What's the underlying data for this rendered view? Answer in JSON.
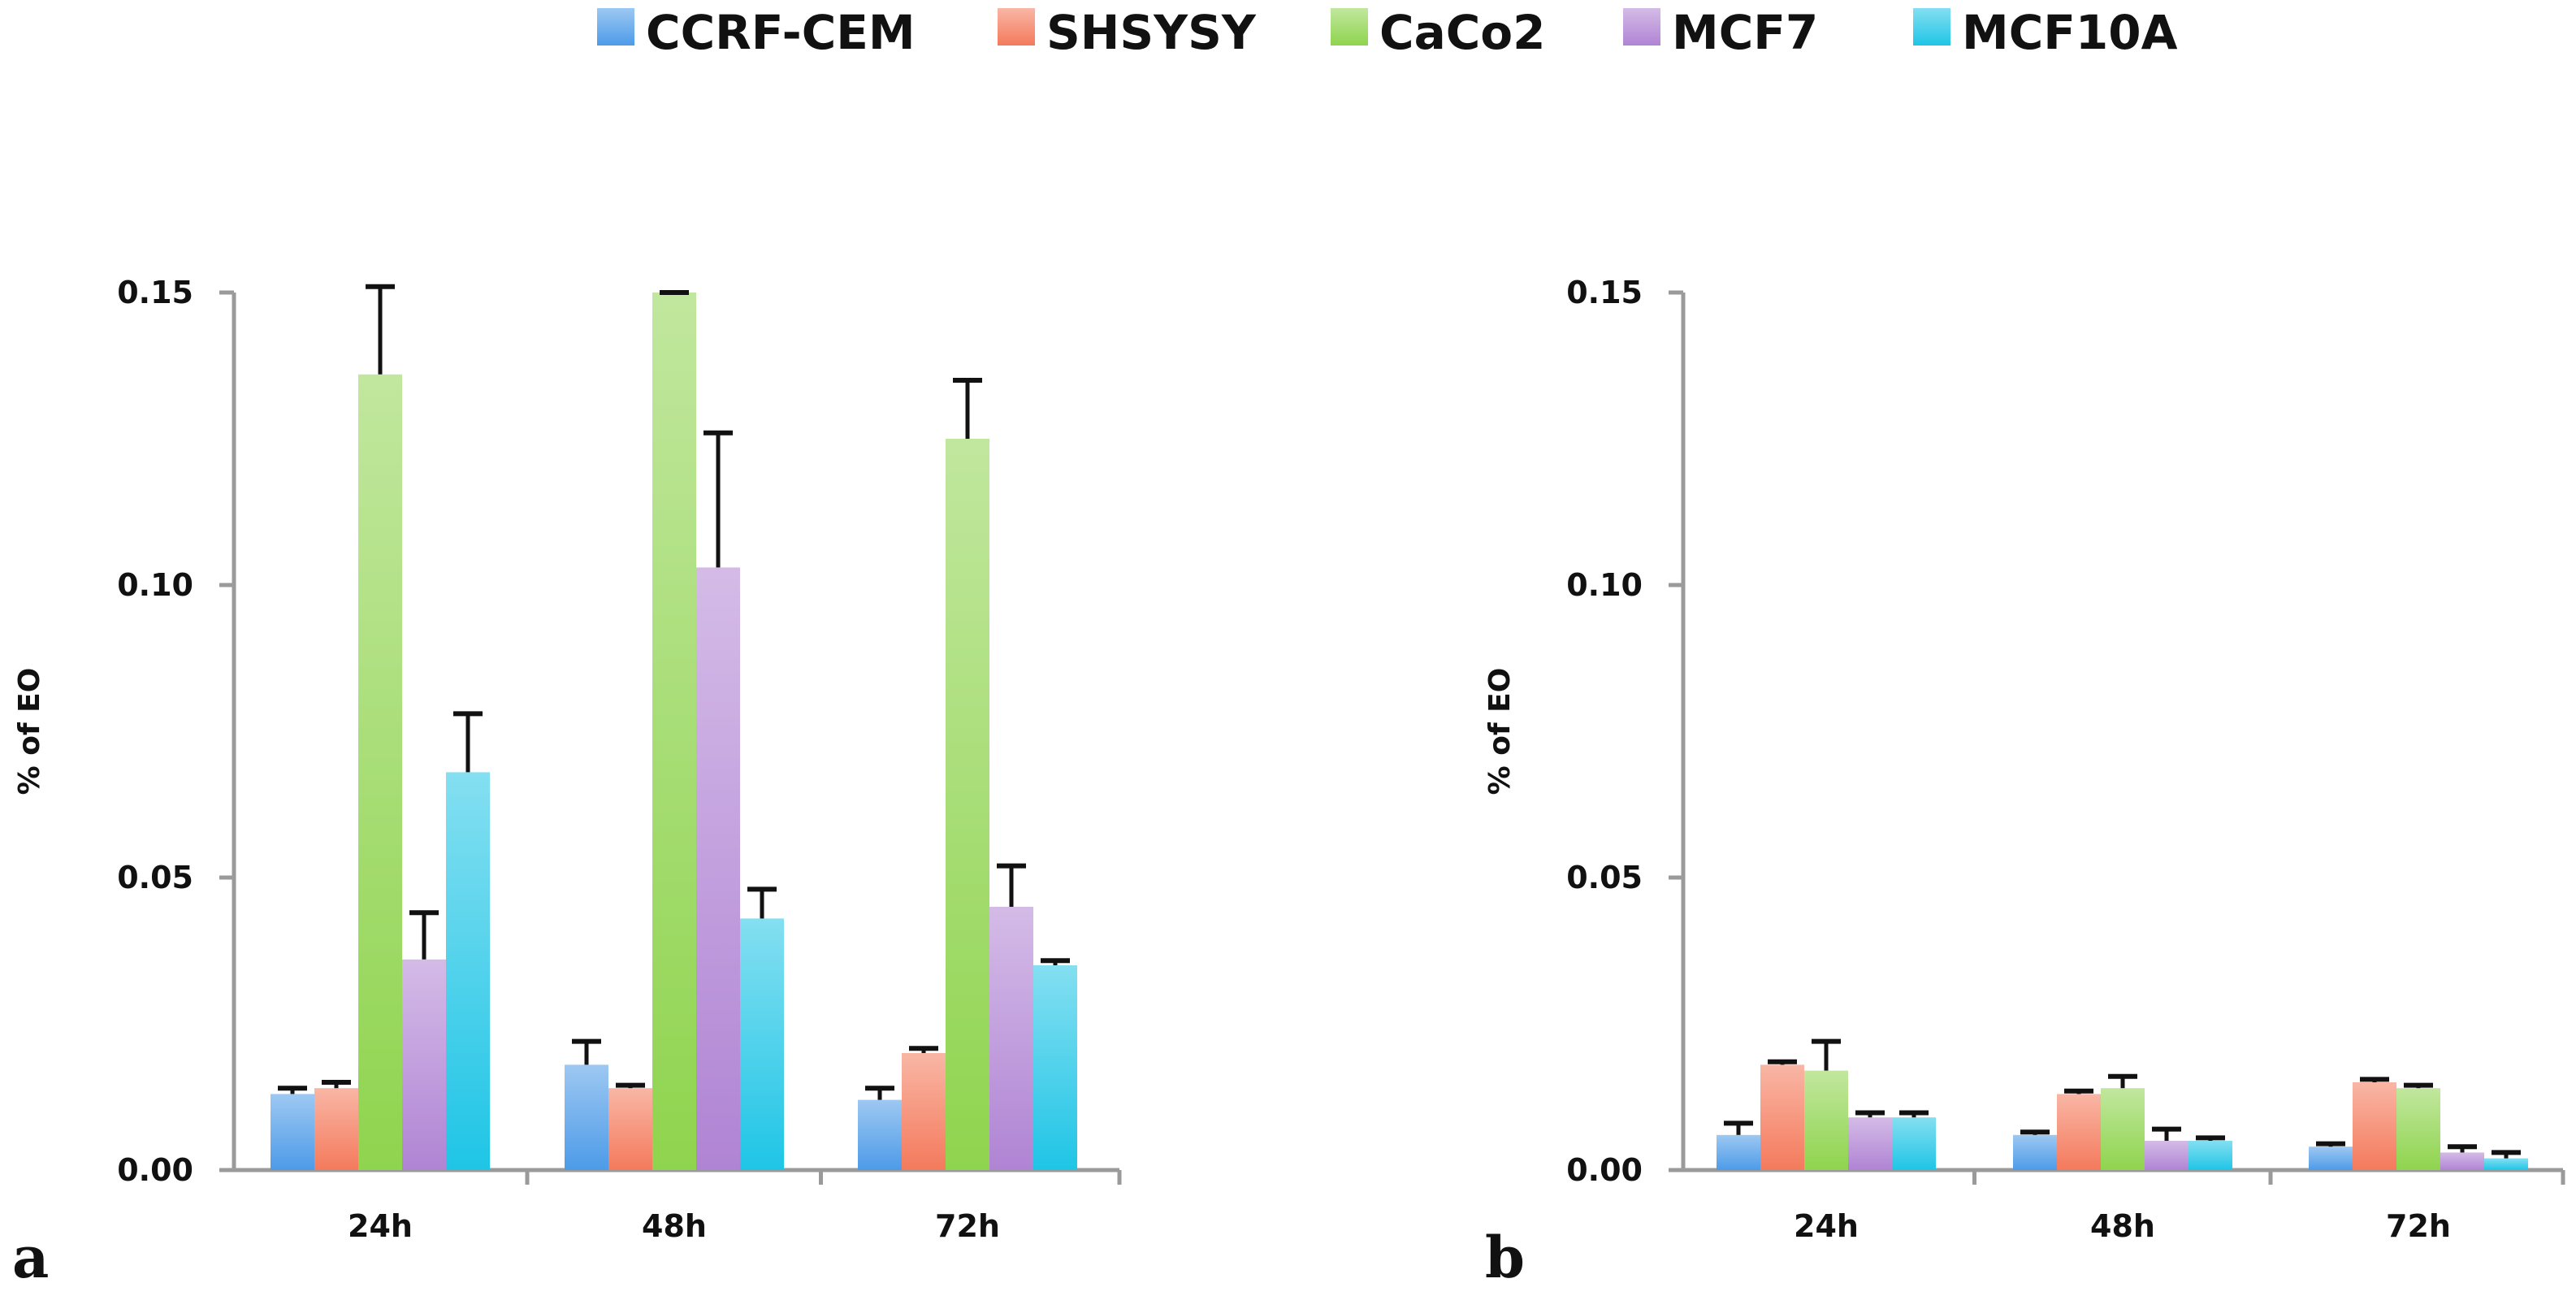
{
  "legend": [
    {
      "name": "CCRF-CEM",
      "color": "#4d9be8"
    },
    {
      "name": "SHSYSY",
      "color": "#f47a5c"
    },
    {
      "name": "CaCo2",
      "color": "#8fd44e"
    },
    {
      "name": "MCF7",
      "color": "#b084d4"
    },
    {
      "name": "MCF10A",
      "color": "#1fc5e6"
    }
  ],
  "chart_data": [
    {
      "type": "bar",
      "panel": "a",
      "title": "",
      "xlabel": "",
      "ylabel": "% of EO",
      "ylim": [
        0,
        0.15
      ],
      "yticks": [
        "0.00",
        "0.05",
        "0.10",
        "0.15"
      ],
      "categories": [
        "24h",
        "48h",
        "72h"
      ],
      "series": [
        {
          "name": "CCRF-CEM",
          "values": [
            0.013,
            0.018,
            0.012
          ],
          "errors": [
            0.001,
            0.004,
            0.002
          ]
        },
        {
          "name": "SHSYSY",
          "values": [
            0.014,
            0.014,
            0.02
          ],
          "errors": [
            0.001,
            0.0005,
            0.0008
          ]
        },
        {
          "name": "CaCo2",
          "values": [
            0.136,
            0.15,
            0.125
          ],
          "errors": [
            0.015,
            0.0,
            0.01
          ]
        },
        {
          "name": "MCF7",
          "values": [
            0.036,
            0.103,
            0.045
          ],
          "errors": [
            0.008,
            0.023,
            0.007
          ]
        },
        {
          "name": "MCF10A",
          "values": [
            0.068,
            0.043,
            0.035
          ],
          "errors": [
            0.01,
            0.005,
            0.0008
          ]
        }
      ]
    },
    {
      "type": "bar",
      "panel": "b",
      "title": "",
      "xlabel": "",
      "ylabel": "% of EO",
      "ylim": [
        0,
        0.15
      ],
      "yticks": [
        "0.00",
        "0.05",
        "0.10",
        "0.15"
      ],
      "categories": [
        "24h",
        "48h",
        "72h"
      ],
      "series": [
        {
          "name": "CCRF-CEM",
          "values": [
            0.006,
            0.006,
            0.004
          ],
          "errors": [
            0.002,
            0.0005,
            0.0005
          ]
        },
        {
          "name": "SHSYSY",
          "values": [
            0.018,
            0.013,
            0.015
          ],
          "errors": [
            0.0005,
            0.0005,
            0.0005
          ]
        },
        {
          "name": "CaCo2",
          "values": [
            0.017,
            0.014,
            0.014
          ],
          "errors": [
            0.005,
            0.002,
            0.0005
          ]
        },
        {
          "name": "MCF7",
          "values": [
            0.009,
            0.005,
            0.003
          ],
          "errors": [
            0.0008,
            0.002,
            0.001
          ]
        },
        {
          "name": "MCF10A",
          "values": [
            0.009,
            0.005,
            0.002
          ],
          "errors": [
            0.0008,
            0.0005,
            0.001
          ]
        }
      ]
    }
  ]
}
